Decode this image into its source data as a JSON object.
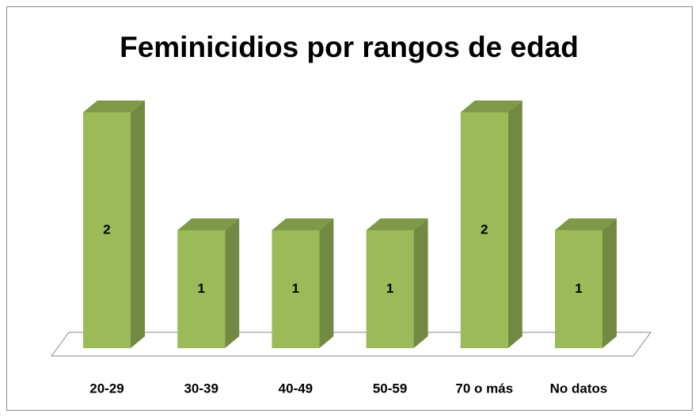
{
  "chart_data": {
    "type": "bar3d",
    "title": "Feminicidios por rangos de edad",
    "categories": [
      "20-29",
      "30-39",
      "40-49",
      "50-59",
      "70 o más",
      "No datos"
    ],
    "values": [
      2,
      1,
      1,
      1,
      2,
      1
    ],
    "color": "#9bbb59"
  }
}
